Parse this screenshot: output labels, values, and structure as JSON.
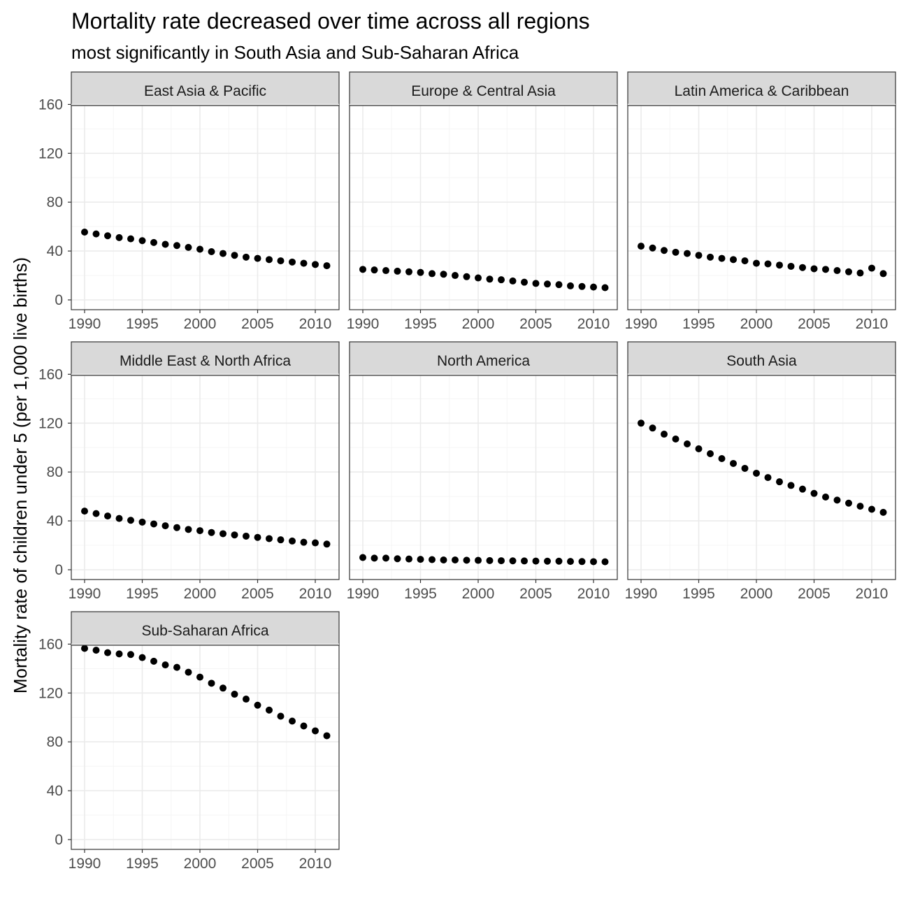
{
  "colors": {
    "point": "#000000",
    "strip_fill": "#d9d9d9",
    "panel_border": "#333333",
    "grid_major": "#ebebeb",
    "grid_minor": "#f5f5f5",
    "tick_text": "#4d4d4d"
  },
  "chart_data": {
    "type": "scatter",
    "facet": "small-multiples",
    "title": "Mortality rate decreased over time across all regions",
    "subtitle": "most significantly in South Asia and Sub-Saharan Africa",
    "xlabel": "",
    "ylabel": "Mortality rate of children under 5 (per 1,000 live births)",
    "xlim": [
      1990,
      2011
    ],
    "ylim": [
      0,
      165
    ],
    "x_ticks": [
      1990,
      1995,
      2000,
      2005,
      2010
    ],
    "y_ticks": [
      0,
      40,
      80,
      120,
      160
    ],
    "grid": true,
    "legend": "none",
    "x": [
      1990,
      1991,
      1992,
      1993,
      1994,
      1995,
      1996,
      1997,
      1998,
      1999,
      2000,
      2001,
      2002,
      2003,
      2004,
      2005,
      2006,
      2007,
      2008,
      2009,
      2010,
      2011
    ],
    "series": [
      {
        "name": "East Asia & Pacific",
        "values": [
          55.5,
          54,
          52.5,
          51,
          50,
          48.5,
          47,
          45.5,
          44.5,
          43,
          41.5,
          39.5,
          38,
          36.5,
          35,
          34,
          33,
          32,
          31,
          30,
          29,
          28
        ]
      },
      {
        "name": "Europe & Central Asia",
        "values": [
          25,
          24.5,
          24,
          23.5,
          23,
          22.5,
          21.5,
          21,
          20,
          19,
          18,
          17,
          16.5,
          15.5,
          14.5,
          13.5,
          13,
          12.5,
          11.5,
          11,
          10.5,
          10
        ]
      },
      {
        "name": "Latin America & Caribbean",
        "values": [
          44,
          42.5,
          40.5,
          39,
          38,
          36.5,
          35,
          34,
          33,
          32,
          30,
          29.5,
          28.5,
          27.5,
          26.5,
          25.5,
          25,
          24,
          23,
          22,
          26,
          21.5
        ]
      },
      {
        "name": "Middle East & North Africa",
        "values": [
          48,
          46,
          44,
          42,
          40.5,
          39,
          37.5,
          36,
          34.5,
          33,
          32,
          30.5,
          29.5,
          28.5,
          27.5,
          26.5,
          25.5,
          24.5,
          23.5,
          22.5,
          22,
          21
        ]
      },
      {
        "name": "North America",
        "values": [
          10,
          9.5,
          9.5,
          9,
          8.8,
          8.5,
          8.3,
          8,
          8,
          7.8,
          7.7,
          7.5,
          7.4,
          7.3,
          7.2,
          7.1,
          7,
          7,
          6.8,
          6.7,
          6.6,
          6.5
        ]
      },
      {
        "name": "South Asia",
        "values": [
          120,
          116,
          111,
          107,
          103,
          99,
          95,
          91,
          87,
          83,
          79,
          75.5,
          72,
          69,
          66,
          62.5,
          59.5,
          57,
          54.5,
          52,
          49.5,
          47
        ]
      },
      {
        "name": "Sub-Saharan Africa",
        "values": [
          156.5,
          155,
          153,
          152,
          151.5,
          149,
          146,
          143,
          141,
          137,
          133,
          128,
          124,
          119,
          115,
          110,
          106,
          101,
          97,
          93,
          89,
          85
        ]
      }
    ]
  }
}
